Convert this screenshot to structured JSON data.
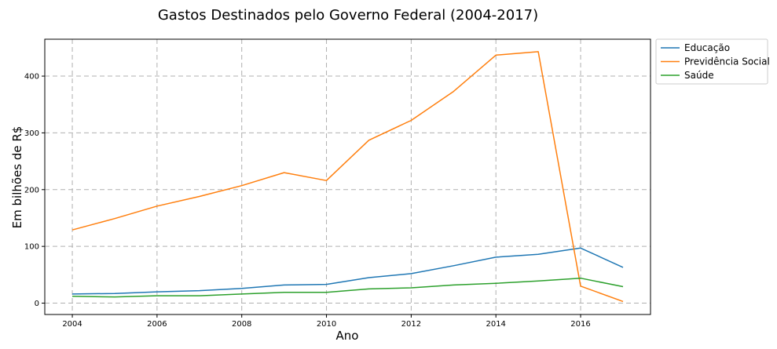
{
  "chart_data": {
    "type": "line",
    "title": "Gastos Destinados pelo Governo Federal (2004-2017)",
    "xlabel": "Ano",
    "ylabel": "Em bilhões de R$",
    "x": [
      2004,
      2005,
      2006,
      2007,
      2008,
      2009,
      2010,
      2011,
      2012,
      2013,
      2014,
      2015,
      2016,
      2017
    ],
    "xlim": [
      2003.35,
      2017.65
    ],
    "ylim": [
      -20,
      465
    ],
    "xticks": [
      2004,
      2006,
      2008,
      2010,
      2012,
      2014,
      2016
    ],
    "yticks": [
      0,
      100,
      200,
      300,
      400
    ],
    "grid": true,
    "legend_position": "outside-top-right",
    "series": [
      {
        "name": "Educação",
        "color": "#1f77b4",
        "values": [
          16,
          17,
          20,
          22,
          26,
          32,
          33,
          45,
          52,
          66,
          81,
          86,
          97,
          63
        ]
      },
      {
        "name": "Previdência Social",
        "color": "#ff7f0e",
        "values": [
          129,
          149,
          171,
          188,
          207,
          230,
          216,
          287,
          322,
          373,
          437,
          443,
          30,
          3
        ]
      },
      {
        "name": "Saúde",
        "color": "#2ca02c",
        "values": [
          12,
          11,
          13,
          13,
          16,
          19,
          19,
          25,
          27,
          32,
          35,
          39,
          44,
          29
        ]
      }
    ]
  }
}
